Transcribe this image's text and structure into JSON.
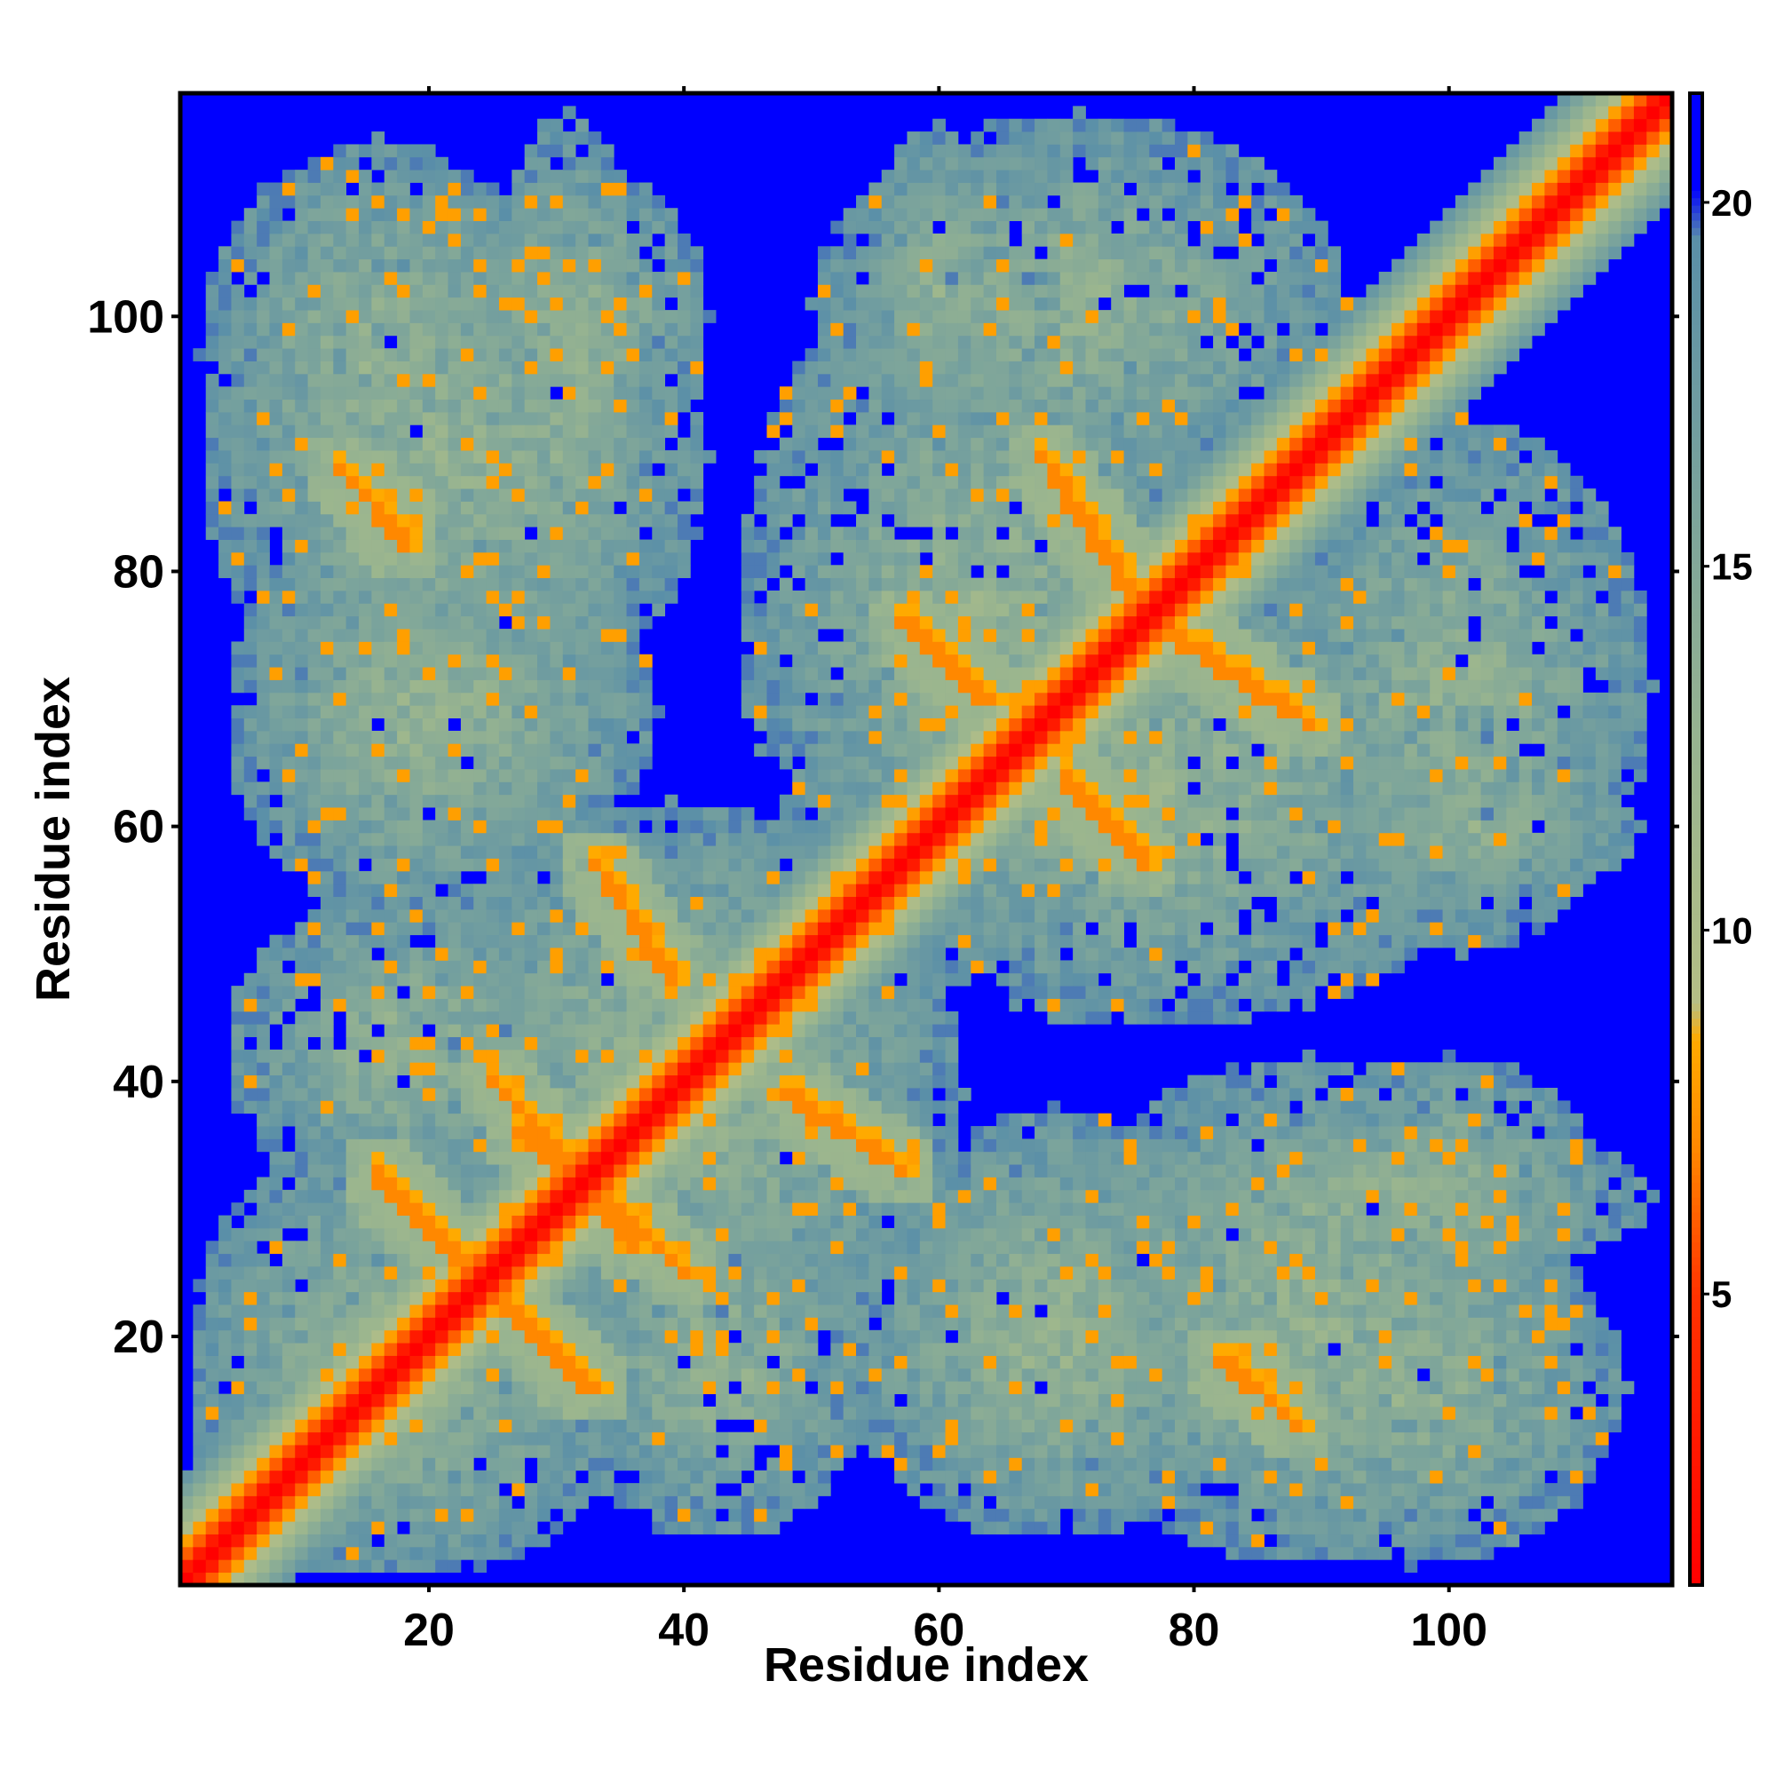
{
  "chart_data": {
    "type": "heatmap",
    "title": "",
    "xlabel": "Residue index",
    "ylabel": "Residue index",
    "n_residues": 117,
    "xlim": [
      1,
      117
    ],
    "ylim": [
      1,
      117
    ],
    "x_ticks": [
      20,
      40,
      60,
      80,
      100
    ],
    "y_ticks": [
      20,
      40,
      60,
      80,
      100
    ],
    "grid": false,
    "colorbar": {
      "placement": "right",
      "ticks": [
        5,
        10,
        15,
        20
      ],
      "range": [
        1,
        21.5
      ],
      "stops": [
        {
          "value": 1,
          "color": "#ff0000"
        },
        {
          "value": 5,
          "color": "#ff3300"
        },
        {
          "value": 7,
          "color": "#ff8800"
        },
        {
          "value": 8.5,
          "color": "#ffaa00"
        },
        {
          "value": 9,
          "color": "#b5bf86"
        },
        {
          "value": 12,
          "color": "#9cb68e"
        },
        {
          "value": 16,
          "color": "#7aa39c"
        },
        {
          "value": 19.5,
          "color": "#5a8fa8"
        },
        {
          "value": 20.2,
          "color": "#0000ff"
        },
        {
          "value": 21.5,
          "color": "#0000ff"
        }
      ]
    },
    "background_value": 21.5,
    "diagonal_profile": [
      {
        "offset": 0,
        "value": 1
      },
      {
        "offset": 1,
        "value": 3
      },
      {
        "offset": 2,
        "value": 6
      },
      {
        "offset": 3,
        "value": 8
      },
      {
        "offset": 4,
        "value": 10
      },
      {
        "offset": 5,
        "value": 12
      },
      {
        "offset": 6,
        "value": 14
      },
      {
        "offset": 7,
        "value": 16
      },
      {
        "offset": 8,
        "value": 18
      }
    ],
    "contact_bands": [
      {
        "x": [
          16,
          32
        ],
        "y": [
          33,
          16
        ],
        "value": 7
      },
      {
        "x": [
          25,
          36
        ],
        "y": [
          40,
          27
        ],
        "value": 7
      },
      {
        "x": [
          33,
          38
        ],
        "y": [
          57,
          49
        ],
        "value": 7
      },
      {
        "x": [
          48,
          57
        ],
        "y": [
          39,
          33
        ],
        "value": 7
      },
      {
        "x": [
          57,
          63
        ],
        "y": [
          76,
          70
        ],
        "value": 7
      },
      {
        "x": [
          69,
          75
        ],
        "y": [
          87,
          78
        ],
        "value": 7
      },
      {
        "x": [
          70,
          75
        ],
        "y": [
          64,
          58
        ],
        "value": 7
      },
      {
        "x": [
          77,
          89
        ],
        "y": [
          76,
          68
        ],
        "value": 7
      },
      {
        "x": [
          82,
          87
        ],
        "y": [
          18,
          14
        ],
        "value": 7
      },
      {
        "x": [
          13,
          18
        ],
        "y": [
          88,
          82
        ],
        "value": 7
      }
    ],
    "contact_clusters": [
      {
        "x": [
          1,
          30
        ],
        "y": [
          1,
          36
        ],
        "value": 13
      },
      {
        "x": [
          18,
          60
        ],
        "y": [
          22,
          62
        ],
        "value": 13
      },
      {
        "x": [
          2,
          30
        ],
        "y": [
          80,
          114
        ],
        "value": 13
      },
      {
        "x": [
          22,
          42
        ],
        "y": [
          88,
          112
        ],
        "value": 13
      },
      {
        "x": [
          6,
          38
        ],
        "y": [
          56,
          82
        ],
        "value": 13
      },
      {
        "x": [
          30,
          55
        ],
        "y": [
          4,
          32
        ],
        "value": 13
      },
      {
        "x": [
          52,
          85
        ],
        "y": [
          4,
          34
        ],
        "value": 13
      },
      {
        "x": [
          68,
          110
        ],
        "y": [
          2,
          42
        ],
        "value": 13
      },
      {
        "x": [
          70,
          116
        ],
        "y": [
          24,
          38
        ],
        "value": 13
      },
      {
        "x": [
          50,
          105
        ],
        "y": [
          44,
          82
        ],
        "value": 13
      },
      {
        "x": [
          90,
          115
        ],
        "y": [
          54,
          66
        ],
        "value": 13
      },
      {
        "x": [
          50,
          92
        ],
        "y": [
          86,
          116
        ],
        "value": 13
      }
    ]
  }
}
